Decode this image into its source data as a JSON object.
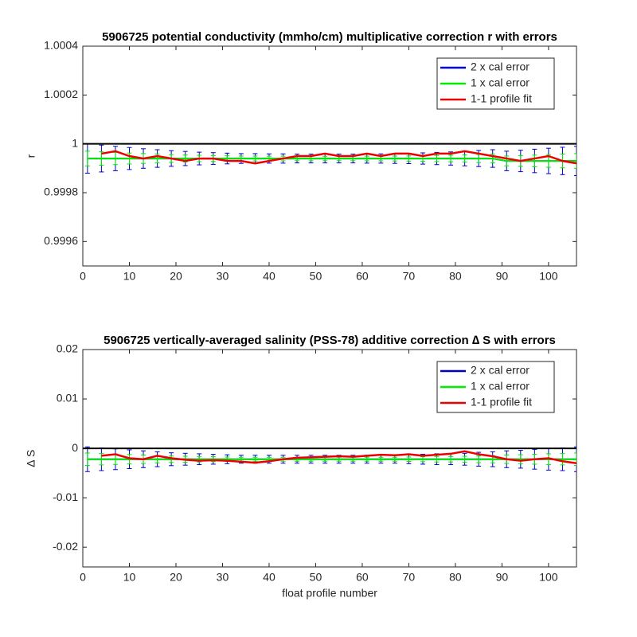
{
  "chart_data": [
    {
      "type": "line",
      "title": "5906725 potential conductivity (mmho/cm) multiplicative correction r with errors",
      "ylabel": "r",
      "x": [
        1,
        4,
        7,
        10,
        13,
        16,
        19,
        22,
        25,
        28,
        31,
        34,
        37,
        40,
        43,
        46,
        49,
        52,
        55,
        58,
        61,
        64,
        67,
        70,
        73,
        76,
        79,
        82,
        85,
        88,
        91,
        94,
        97,
        100,
        103,
        106
      ],
      "xlim": [
        0,
        106
      ],
      "xticks": [
        0,
        10,
        20,
        30,
        40,
        50,
        60,
        70,
        80,
        90,
        100
      ],
      "ylim": [
        0.9995,
        1.0004
      ],
      "yticks": [
        0.9996,
        0.9998,
        1,
        1.0002,
        1.0004
      ],
      "reference": 1,
      "reference_color": "#000000",
      "legend": "upper right",
      "series": [
        {
          "name": "2 x cal error",
          "color": "#0000cc",
          "values": [
            0.99994,
            0.99994,
            0.99994,
            0.99994,
            0.99994,
            0.99994,
            0.99994,
            0.99994,
            0.99994,
            0.99994,
            0.99994,
            0.99994,
            0.99994,
            0.99994,
            0.99994,
            0.99994,
            0.99994,
            0.99994,
            0.99994,
            0.99994,
            0.99994,
            0.99994,
            0.99994,
            0.99994,
            0.99994,
            0.99994,
            0.99994,
            0.99994,
            0.99994,
            0.99994,
            0.99993,
            0.99993,
            0.99993,
            0.99993,
            0.99993,
            0.99993
          ],
          "errors": [
            6e-05,
            5.5e-05,
            5e-05,
            4.5e-05,
            4e-05,
            3.6e-05,
            3.2e-05,
            2.9e-05,
            2.6e-05,
            2.4e-05,
            2.2e-05,
            2e-05,
            2e-05,
            1.9e-05,
            1.9e-05,
            1.8e-05,
            1.8e-05,
            1.8e-05,
            1.8e-05,
            1.8e-05,
            1.9e-05,
            1.9e-05,
            2e-05,
            2.1e-05,
            2.3e-05,
            2.5e-05,
            2.7e-05,
            3e-05,
            3.3e-05,
            3.6e-05,
            4e-05,
            4.4e-05,
            4.8e-05,
            5.2e-05,
            5.6e-05,
            6e-05
          ]
        },
        {
          "name": "1 x cal error",
          "color": "#00ee00",
          "values": [
            0.99994,
            0.99994,
            0.99994,
            0.99994,
            0.99994,
            0.99994,
            0.99994,
            0.99994,
            0.99994,
            0.99994,
            0.99994,
            0.99994,
            0.99994,
            0.99994,
            0.99994,
            0.99994,
            0.99994,
            0.99994,
            0.99994,
            0.99994,
            0.99994,
            0.99994,
            0.99994,
            0.99994,
            0.99994,
            0.99994,
            0.99994,
            0.99994,
            0.99994,
            0.99994,
            0.99993,
            0.99993,
            0.99993,
            0.99993,
            0.99993,
            0.99993
          ],
          "errors": [
            3e-05,
            2.75e-05,
            2.5e-05,
            2.25e-05,
            2e-05,
            1.8e-05,
            1.6e-05,
            1.45e-05,
            1.3e-05,
            1.2e-05,
            1.1e-05,
            1e-05,
            1e-05,
            9.5e-06,
            9.5e-06,
            9e-06,
            9e-06,
            9e-06,
            9e-06,
            9e-06,
            9.5e-06,
            9.5e-06,
            1e-05,
            1.05e-05,
            1.15e-05,
            1.25e-05,
            1.35e-05,
            1.5e-05,
            1.65e-05,
            1.8e-05,
            2e-05,
            2.2e-05,
            2.4e-05,
            2.6e-05,
            2.8e-05,
            3e-05
          ]
        },
        {
          "name": "1-1 profile fit",
          "color": "#ee0000",
          "values": [
            null,
            0.99996,
            0.99997,
            0.99995,
            0.99994,
            0.99995,
            0.99994,
            0.99993,
            0.99994,
            0.99994,
            0.99993,
            0.99993,
            0.99992,
            0.99993,
            0.99994,
            0.99995,
            0.99995,
            0.99996,
            0.99995,
            0.99995,
            0.99996,
            0.99995,
            0.99996,
            0.99996,
            0.99995,
            0.99996,
            0.99996,
            0.99997,
            0.99996,
            0.99995,
            0.99994,
            0.99993,
            0.99994,
            0.99995,
            0.99993,
            0.99992
          ]
        }
      ]
    },
    {
      "type": "line",
      "title": "5906725 vertically-averaged salinity (PSS-78) additive correction ∆ S with errors",
      "ylabel": "∆ S",
      "xlabel": "float profile number",
      "x": [
        1,
        4,
        7,
        10,
        13,
        16,
        19,
        22,
        25,
        28,
        31,
        34,
        37,
        40,
        43,
        46,
        49,
        52,
        55,
        58,
        61,
        64,
        67,
        70,
        73,
        76,
        79,
        82,
        85,
        88,
        91,
        94,
        97,
        100,
        103,
        106
      ],
      "xlim": [
        0,
        106
      ],
      "xticks": [
        0,
        10,
        20,
        30,
        40,
        50,
        60,
        70,
        80,
        90,
        100
      ],
      "ylim": [
        -0.024,
        0.02
      ],
      "yticks": [
        -0.02,
        -0.01,
        0,
        0.01,
        0.02
      ],
      "reference": 0,
      "reference_color": "#000000",
      "legend": "upper right",
      "series": [
        {
          "name": "2 x cal error",
          "color": "#0000cc",
          "values": [
            -0.0022,
            -0.0022,
            -0.0022,
            -0.0022,
            -0.0022,
            -0.0022,
            -0.0022,
            -0.0022,
            -0.0022,
            -0.0022,
            -0.0022,
            -0.0022,
            -0.0022,
            -0.0022,
            -0.0022,
            -0.0022,
            -0.0022,
            -0.0022,
            -0.0022,
            -0.0022,
            -0.0022,
            -0.0022,
            -0.0022,
            -0.0022,
            -0.0022,
            -0.0022,
            -0.0022,
            -0.0022,
            -0.0022,
            -0.0022,
            -0.0022,
            -0.0022,
            -0.0022,
            -0.0022,
            -0.0022,
            -0.0022
          ],
          "errors": [
            0.0025,
            0.0023,
            0.0021,
            0.0019,
            0.0017,
            0.0015,
            0.0013,
            0.0012,
            0.0011,
            0.001,
            0.0009,
            0.0008,
            0.0008,
            0.0008,
            0.0008,
            0.0008,
            0.0008,
            0.0008,
            0.0008,
            0.0008,
            0.0008,
            0.0008,
            0.0008,
            0.0009,
            0.001,
            0.0011,
            0.0011,
            0.0012,
            0.0014,
            0.0015,
            0.0017,
            0.0018,
            0.002,
            0.0022,
            0.0023,
            0.0025
          ]
        },
        {
          "name": "1 x cal error",
          "color": "#00ee00",
          "values": [
            -0.0022,
            -0.0022,
            -0.0022,
            -0.0022,
            -0.0022,
            -0.0022,
            -0.0022,
            -0.0022,
            -0.0022,
            -0.0022,
            -0.0022,
            -0.0022,
            -0.0022,
            -0.0022,
            -0.0022,
            -0.0022,
            -0.0022,
            -0.0022,
            -0.0022,
            -0.0022,
            -0.0022,
            -0.0022,
            -0.0022,
            -0.0022,
            -0.0022,
            -0.0022,
            -0.0022,
            -0.0022,
            -0.0022,
            -0.0022,
            -0.0022,
            -0.0022,
            -0.0022,
            -0.0022,
            -0.0022,
            -0.0022
          ],
          "errors": [
            0.00125,
            0.00115,
            0.00105,
            0.00095,
            0.00085,
            0.00075,
            0.00065,
            0.0006,
            0.00055,
            0.0005,
            0.00045,
            0.0004,
            0.0004,
            0.0004,
            0.0004,
            0.0004,
            0.0004,
            0.0004,
            0.0004,
            0.0004,
            0.0004,
            0.0004,
            0.0004,
            0.00045,
            0.0005,
            0.00055,
            0.00055,
            0.0006,
            0.0007,
            0.00075,
            0.00085,
            0.0009,
            0.001,
            0.0011,
            0.00115,
            0.00125
          ]
        },
        {
          "name": "1-1 profile fit",
          "color": "#ee0000",
          "values": [
            null,
            -0.0015,
            -0.0012,
            -0.002,
            -0.0022,
            -0.0015,
            -0.002,
            -0.0023,
            -0.0025,
            -0.0024,
            -0.0025,
            -0.0027,
            -0.0029,
            -0.0026,
            -0.0022,
            -0.0019,
            -0.0018,
            -0.0017,
            -0.0016,
            -0.0017,
            -0.0015,
            -0.0013,
            -0.0014,
            -0.0012,
            -0.0015,
            -0.0013,
            -0.0011,
            -0.0006,
            -0.0012,
            -0.0016,
            -0.0022,
            -0.0025,
            -0.0022,
            -0.002,
            -0.0026,
            -0.003
          ]
        }
      ]
    }
  ]
}
